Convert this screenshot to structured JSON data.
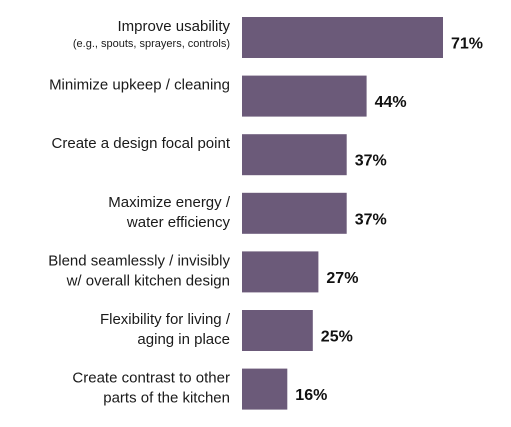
{
  "chart_data": {
    "type": "bar",
    "orientation": "horizontal",
    "categories": [
      {
        "lines": [
          "Improve usability"
        ],
        "sub": "(e.g., spouts, sprayers, controls)"
      },
      {
        "lines": [
          "Minimize upkeep / cleaning"
        ],
        "sub": ""
      },
      {
        "lines": [
          "Create a design focal point"
        ],
        "sub": ""
      },
      {
        "lines": [
          "Maximize energy /",
          "water efficiency"
        ],
        "sub": ""
      },
      {
        "lines": [
          "Blend seamlessly / invisibly",
          "w/ overall kitchen design"
        ],
        "sub": ""
      },
      {
        "lines": [
          "Flexibility for living /",
          "aging in place"
        ],
        "sub": ""
      },
      {
        "lines": [
          "Create contrast to other",
          "parts of the kitchen"
        ],
        "sub": ""
      }
    ],
    "values": [
      71,
      44,
      37,
      37,
      27,
      25,
      16
    ],
    "value_labels": [
      "71%",
      "44%",
      "37%",
      "37%",
      "27%",
      "25%",
      "16%"
    ],
    "title": "",
    "xlabel": "",
    "ylabel": "",
    "xlim": [
      0,
      71
    ],
    "grid": false,
    "legend": "none",
    "colors": {
      "bar": "#6b5a79"
    }
  }
}
